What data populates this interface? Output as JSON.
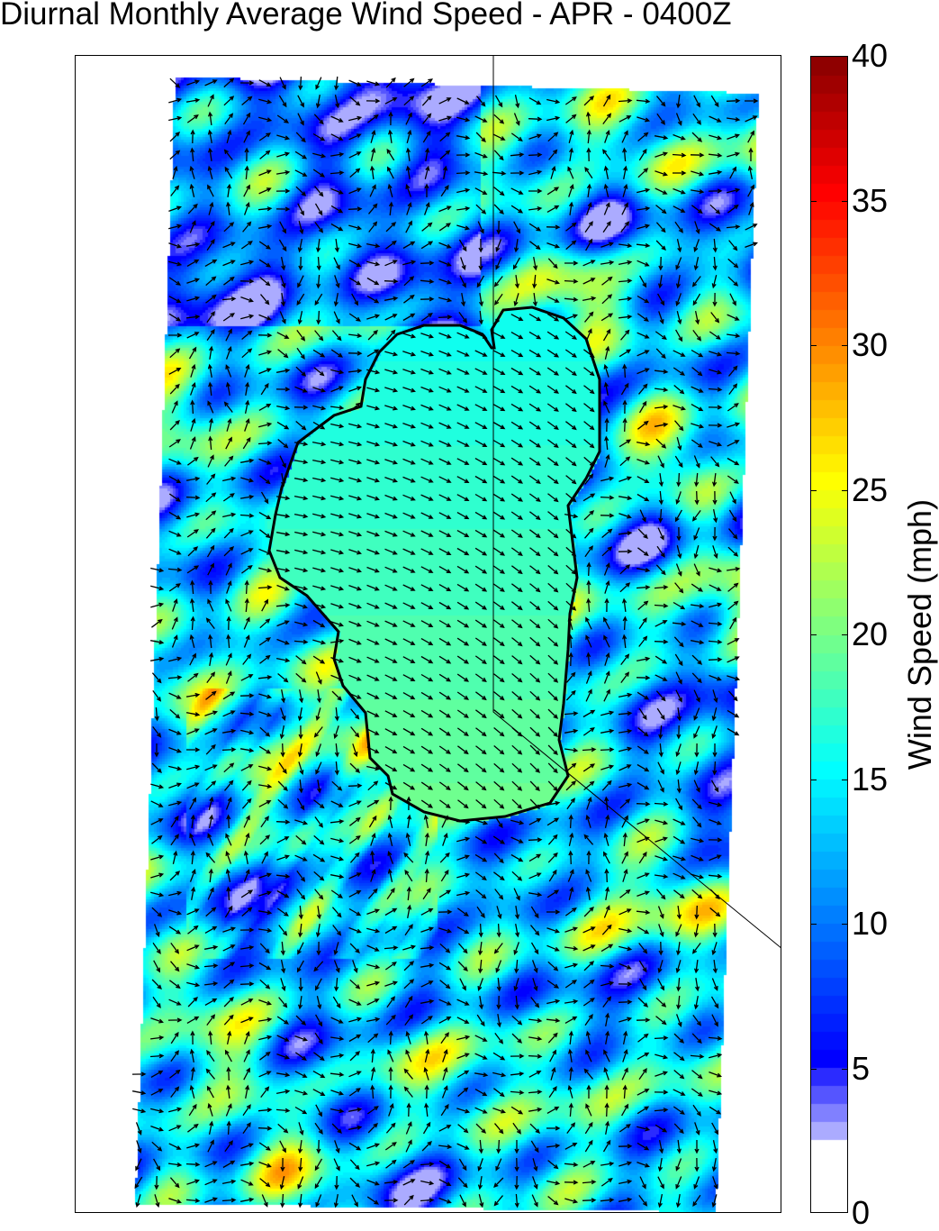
{
  "title": "Diurnal Monthly Average Wind Speed - APR - 0400Z",
  "colorbar": {
    "label": "Wind Speed (mph)",
    "ticks": [
      "0",
      "5",
      "10",
      "15",
      "20",
      "25",
      "30",
      "35",
      "40"
    ],
    "range": [
      0,
      40
    ],
    "colormap": "jet with white below ~2 mph",
    "low_color": "#ffffff",
    "high_color": "#800000"
  },
  "map": {
    "field": "wind speed with direction vectors",
    "lake_outline_color": "#000000",
    "lake_speed_mph": 16
  }
}
